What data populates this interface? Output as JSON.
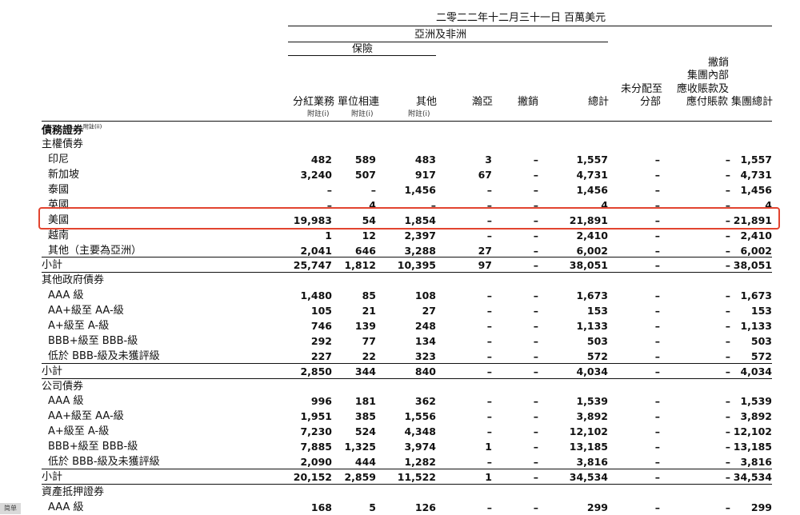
{
  "header": {
    "period_unit": "二零二二年十二月三十一日 百萬美元",
    "group_region": "亞洲及非洲",
    "group_insurance": "保險",
    "columns": [
      {
        "label": "分紅業務",
        "note": "附註(i)"
      },
      {
        "label": "單位相連",
        "note": "附註(i)"
      },
      {
        "label": "其他",
        "note": "附註(i)"
      },
      {
        "label": "瀚亞",
        "note": ""
      },
      {
        "label": "撇銷",
        "note": ""
      },
      {
        "label": "總計",
        "note": ""
      },
      {
        "label_lines": [
          "未分配至",
          "分部"
        ],
        "note": ""
      },
      {
        "label_lines": [
          "撇銷",
          "集團內部",
          "應收賬款及",
          "應付賬款"
        ],
        "note": ""
      },
      {
        "label": "集團總計",
        "note": ""
      }
    ]
  },
  "section_title": "債務證券",
  "section_note": "附註(ii)",
  "rows": [
    {
      "label": "主權債券",
      "type": "group"
    },
    {
      "label": "印尼",
      "values": [
        "482",
        "589",
        "483",
        "3",
        "–",
        "1,557",
        "–",
        "–",
        "1,557"
      ]
    },
    {
      "label": "新加坡",
      "values": [
        "3,240",
        "507",
        "917",
        "67",
        "–",
        "4,731",
        "–",
        "–",
        "4,731"
      ]
    },
    {
      "label": "泰國",
      "values": [
        "–",
        "–",
        "1,456",
        "–",
        "–",
        "1,456",
        "–",
        "–",
        "1,456"
      ]
    },
    {
      "label": "英國",
      "values": [
        "–",
        "4",
        "–",
        "–",
        "–",
        "4",
        "–",
        "–",
        "4"
      ]
    },
    {
      "label": "美國",
      "values": [
        "19,983",
        "54",
        "1,854",
        "–",
        "–",
        "21,891",
        "–",
        "–",
        "21,891"
      ],
      "highlighted": true
    },
    {
      "label": "越南",
      "values": [
        "1",
        "12",
        "2,397",
        "–",
        "–",
        "2,410",
        "–",
        "–",
        "2,410"
      ]
    },
    {
      "label": "其他（主要為亞洲）",
      "values": [
        "2,041",
        "646",
        "3,288",
        "27",
        "–",
        "6,002",
        "–",
        "–",
        "6,002"
      ]
    },
    {
      "label": "小計",
      "type": "subtotal",
      "values": [
        "25,747",
        "1,812",
        "10,395",
        "97",
        "–",
        "38,051",
        "–",
        "–",
        "38,051"
      ]
    },
    {
      "label": "其他政府債券",
      "type": "group"
    },
    {
      "label": "AAA 級",
      "values": [
        "1,480",
        "85",
        "108",
        "–",
        "–",
        "1,673",
        "–",
        "–",
        "1,673"
      ]
    },
    {
      "label": "AA+級至 AA-級",
      "values": [
        "105",
        "21",
        "27",
        "–",
        "–",
        "153",
        "–",
        "–",
        "153"
      ]
    },
    {
      "label": "A+級至 A-級",
      "values": [
        "746",
        "139",
        "248",
        "–",
        "–",
        "1,133",
        "–",
        "–",
        "1,133"
      ]
    },
    {
      "label": "BBB+級至 BBB-級",
      "values": [
        "292",
        "77",
        "134",
        "–",
        "–",
        "503",
        "–",
        "–",
        "503"
      ]
    },
    {
      "label": "低於 BBB-級及未獲評級",
      "values": [
        "227",
        "22",
        "323",
        "–",
        "–",
        "572",
        "–",
        "–",
        "572"
      ]
    },
    {
      "label": "小計",
      "type": "subtotal",
      "values": [
        "2,850",
        "344",
        "840",
        "–",
        "–",
        "4,034",
        "–",
        "–",
        "4,034"
      ]
    },
    {
      "label": "公司債券",
      "type": "group"
    },
    {
      "label": "AAA 級",
      "values": [
        "996",
        "181",
        "362",
        "–",
        "–",
        "1,539",
        "–",
        "–",
        "1,539"
      ]
    },
    {
      "label": "AA+級至 AA-級",
      "values": [
        "1,951",
        "385",
        "1,556",
        "–",
        "–",
        "3,892",
        "–",
        "–",
        "3,892"
      ]
    },
    {
      "label": "A+級至 A-級",
      "values": [
        "7,230",
        "524",
        "4,348",
        "–",
        "–",
        "12,102",
        "–",
        "–",
        "12,102"
      ]
    },
    {
      "label": "BBB+級至 BBB-級",
      "values": [
        "7,885",
        "1,325",
        "3,974",
        "1",
        "–",
        "13,185",
        "–",
        "–",
        "13,185"
      ]
    },
    {
      "label": "低於 BBB-級及未獲評級",
      "values": [
        "2,090",
        "444",
        "1,282",
        "–",
        "–",
        "3,816",
        "–",
        "–",
        "3,816"
      ]
    },
    {
      "label": "小計",
      "type": "subtotal",
      "values": [
        "20,152",
        "2,859",
        "11,522",
        "1",
        "–",
        "34,534",
        "–",
        "–",
        "34,534"
      ]
    },
    {
      "label": "資產抵押證券",
      "type": "group"
    },
    {
      "label": "AAA 級",
      "values": [
        "168",
        "5",
        "126",
        "–",
        "–",
        "299",
        "–",
        "–",
        "299"
      ]
    }
  ],
  "corner_tag": "简单"
}
